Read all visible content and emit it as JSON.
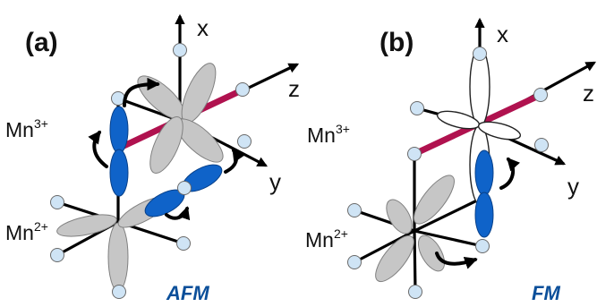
{
  "panels": [
    {
      "label": "(a)",
      "axes": {
        "x": "x",
        "y": "y",
        "z": "z"
      },
      "upper_ion": {
        "base": "Mn",
        "charge": "3+"
      },
      "lower_ion": {
        "base": "Mn",
        "charge": "2+"
      },
      "order": "AFM",
      "order_color": "#0b4f9a"
    },
    {
      "label": "(b)",
      "axes": {
        "x": "x",
        "y": "y",
        "z": "z"
      },
      "upper_ion": {
        "base": "Mn",
        "charge": "3+"
      },
      "lower_ion": {
        "base": "Mn",
        "charge": "2+"
      },
      "order": "FM",
      "order_color": "#0b4f9a"
    }
  ],
  "colors": {
    "bond": "#b0124f",
    "occupied_orbital": "#0f63c9",
    "orbital_lobe": "#c6c6c6",
    "ligand": "#cfe4f5"
  }
}
